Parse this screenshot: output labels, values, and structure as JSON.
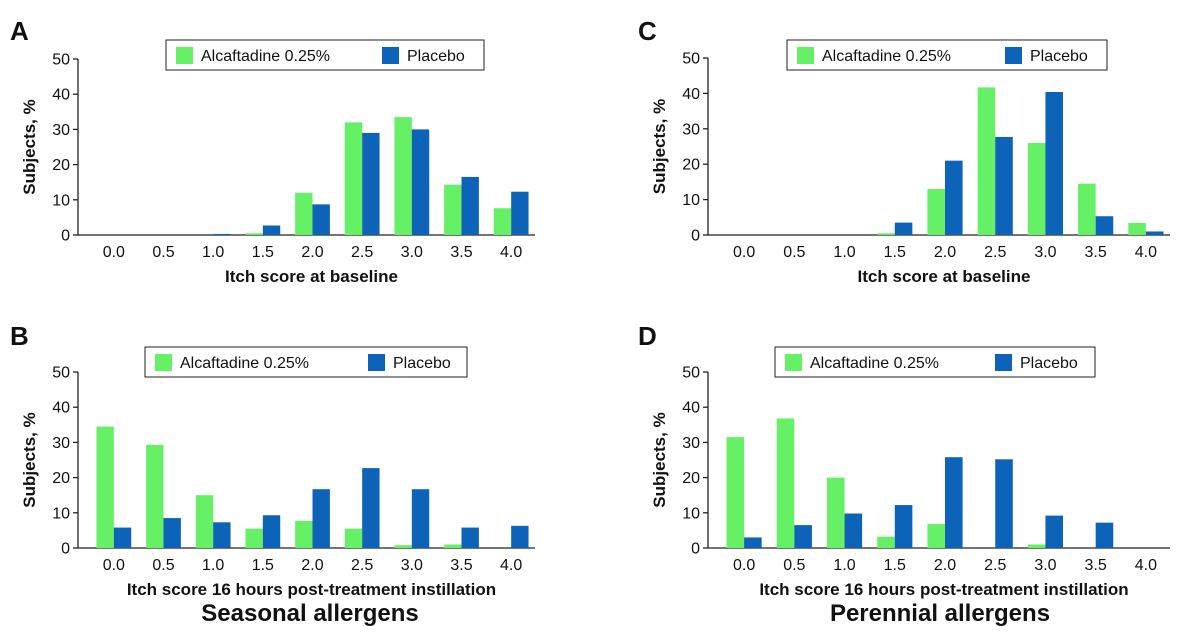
{
  "colors": {
    "alcaftadine": "#66f066",
    "placebo": "#0c63b8"
  },
  "footers": {
    "left": "Seasonal allergens",
    "right": "Perennial allergens"
  },
  "chart_data": [
    {
      "panel": "A",
      "type": "bar",
      "categories": [
        "0.0",
        "0.5",
        "1.0",
        "1.5",
        "2.0",
        "2.5",
        "3.0",
        "3.5",
        "4.0"
      ],
      "series": [
        {
          "name": "Alcaftadine 0.25%",
          "values": [
            0,
            0,
            0,
            0.5,
            12,
            32,
            33.5,
            14.3,
            7.6
          ]
        },
        {
          "name": "Placebo",
          "values": [
            0,
            0,
            0.3,
            2.7,
            8.7,
            29,
            30,
            16.5,
            12.3
          ]
        }
      ],
      "xlabel": "Itch score at baseline",
      "ylabel": "Subjects, %",
      "ylim": [
        0,
        50
      ],
      "yticks": [
        "0",
        "10",
        "20",
        "30",
        "40",
        "50"
      ],
      "legend": "top"
    },
    {
      "panel": "B",
      "type": "bar",
      "categories": [
        "0.0",
        "0.5",
        "1.0",
        "1.5",
        "2.0",
        "2.5",
        "3.0",
        "3.5",
        "4.0"
      ],
      "series": [
        {
          "name": "Alcaftadine 0.25%",
          "values": [
            34.5,
            29.3,
            15,
            5.5,
            7.7,
            5.5,
            0.8,
            1,
            0
          ]
        },
        {
          "name": "Placebo",
          "values": [
            5.8,
            8.5,
            7.3,
            9.3,
            16.7,
            22.7,
            16.7,
            5.8,
            6.3
          ]
        }
      ],
      "xlabel": "Itch score 16 hours post-treatment instillation",
      "ylabel": "Subjects, %",
      "ylim": [
        0,
        50
      ],
      "yticks": [
        "0",
        "10",
        "20",
        "30",
        "40",
        "50"
      ],
      "legend": "top"
    },
    {
      "panel": "C",
      "type": "bar",
      "categories": [
        "0.0",
        "0.5",
        "1.0",
        "1.5",
        "2.0",
        "2.5",
        "3.0",
        "3.5",
        "4.0"
      ],
      "series": [
        {
          "name": "Alcaftadine 0.25%",
          "values": [
            0,
            0,
            0,
            0.5,
            13,
            41.7,
            26,
            14.5,
            3.4
          ]
        },
        {
          "name": "Placebo",
          "values": [
            0,
            0,
            0,
            3.5,
            21,
            27.7,
            40.4,
            5.3,
            1
          ]
        }
      ],
      "xlabel": "Itch score at baseline",
      "ylabel": "Subjects, %",
      "ylim": [
        0,
        50
      ],
      "yticks": [
        "0",
        "10",
        "20",
        "30",
        "40",
        "50"
      ],
      "legend": "top"
    },
    {
      "panel": "D",
      "type": "bar",
      "categories": [
        "0.0",
        "0.5",
        "1.0",
        "1.5",
        "2.0",
        "2.5",
        "3.0",
        "3.5",
        "4.0"
      ],
      "series": [
        {
          "name": "Alcaftadine 0.25%",
          "values": [
            31.5,
            36.8,
            20,
            3.2,
            6.8,
            0,
            1,
            0,
            0
          ]
        },
        {
          "name": "Placebo",
          "values": [
            3,
            6.5,
            9.8,
            12.2,
            25.8,
            25.2,
            9.2,
            7.2,
            0
          ]
        }
      ],
      "xlabel": "Itch score 16 hours post-treatment instillation",
      "ylabel": "Subjects, %",
      "ylim": [
        0,
        50
      ],
      "yticks": [
        "0",
        "10",
        "20",
        "30",
        "40",
        "50"
      ],
      "legend": "top"
    }
  ]
}
